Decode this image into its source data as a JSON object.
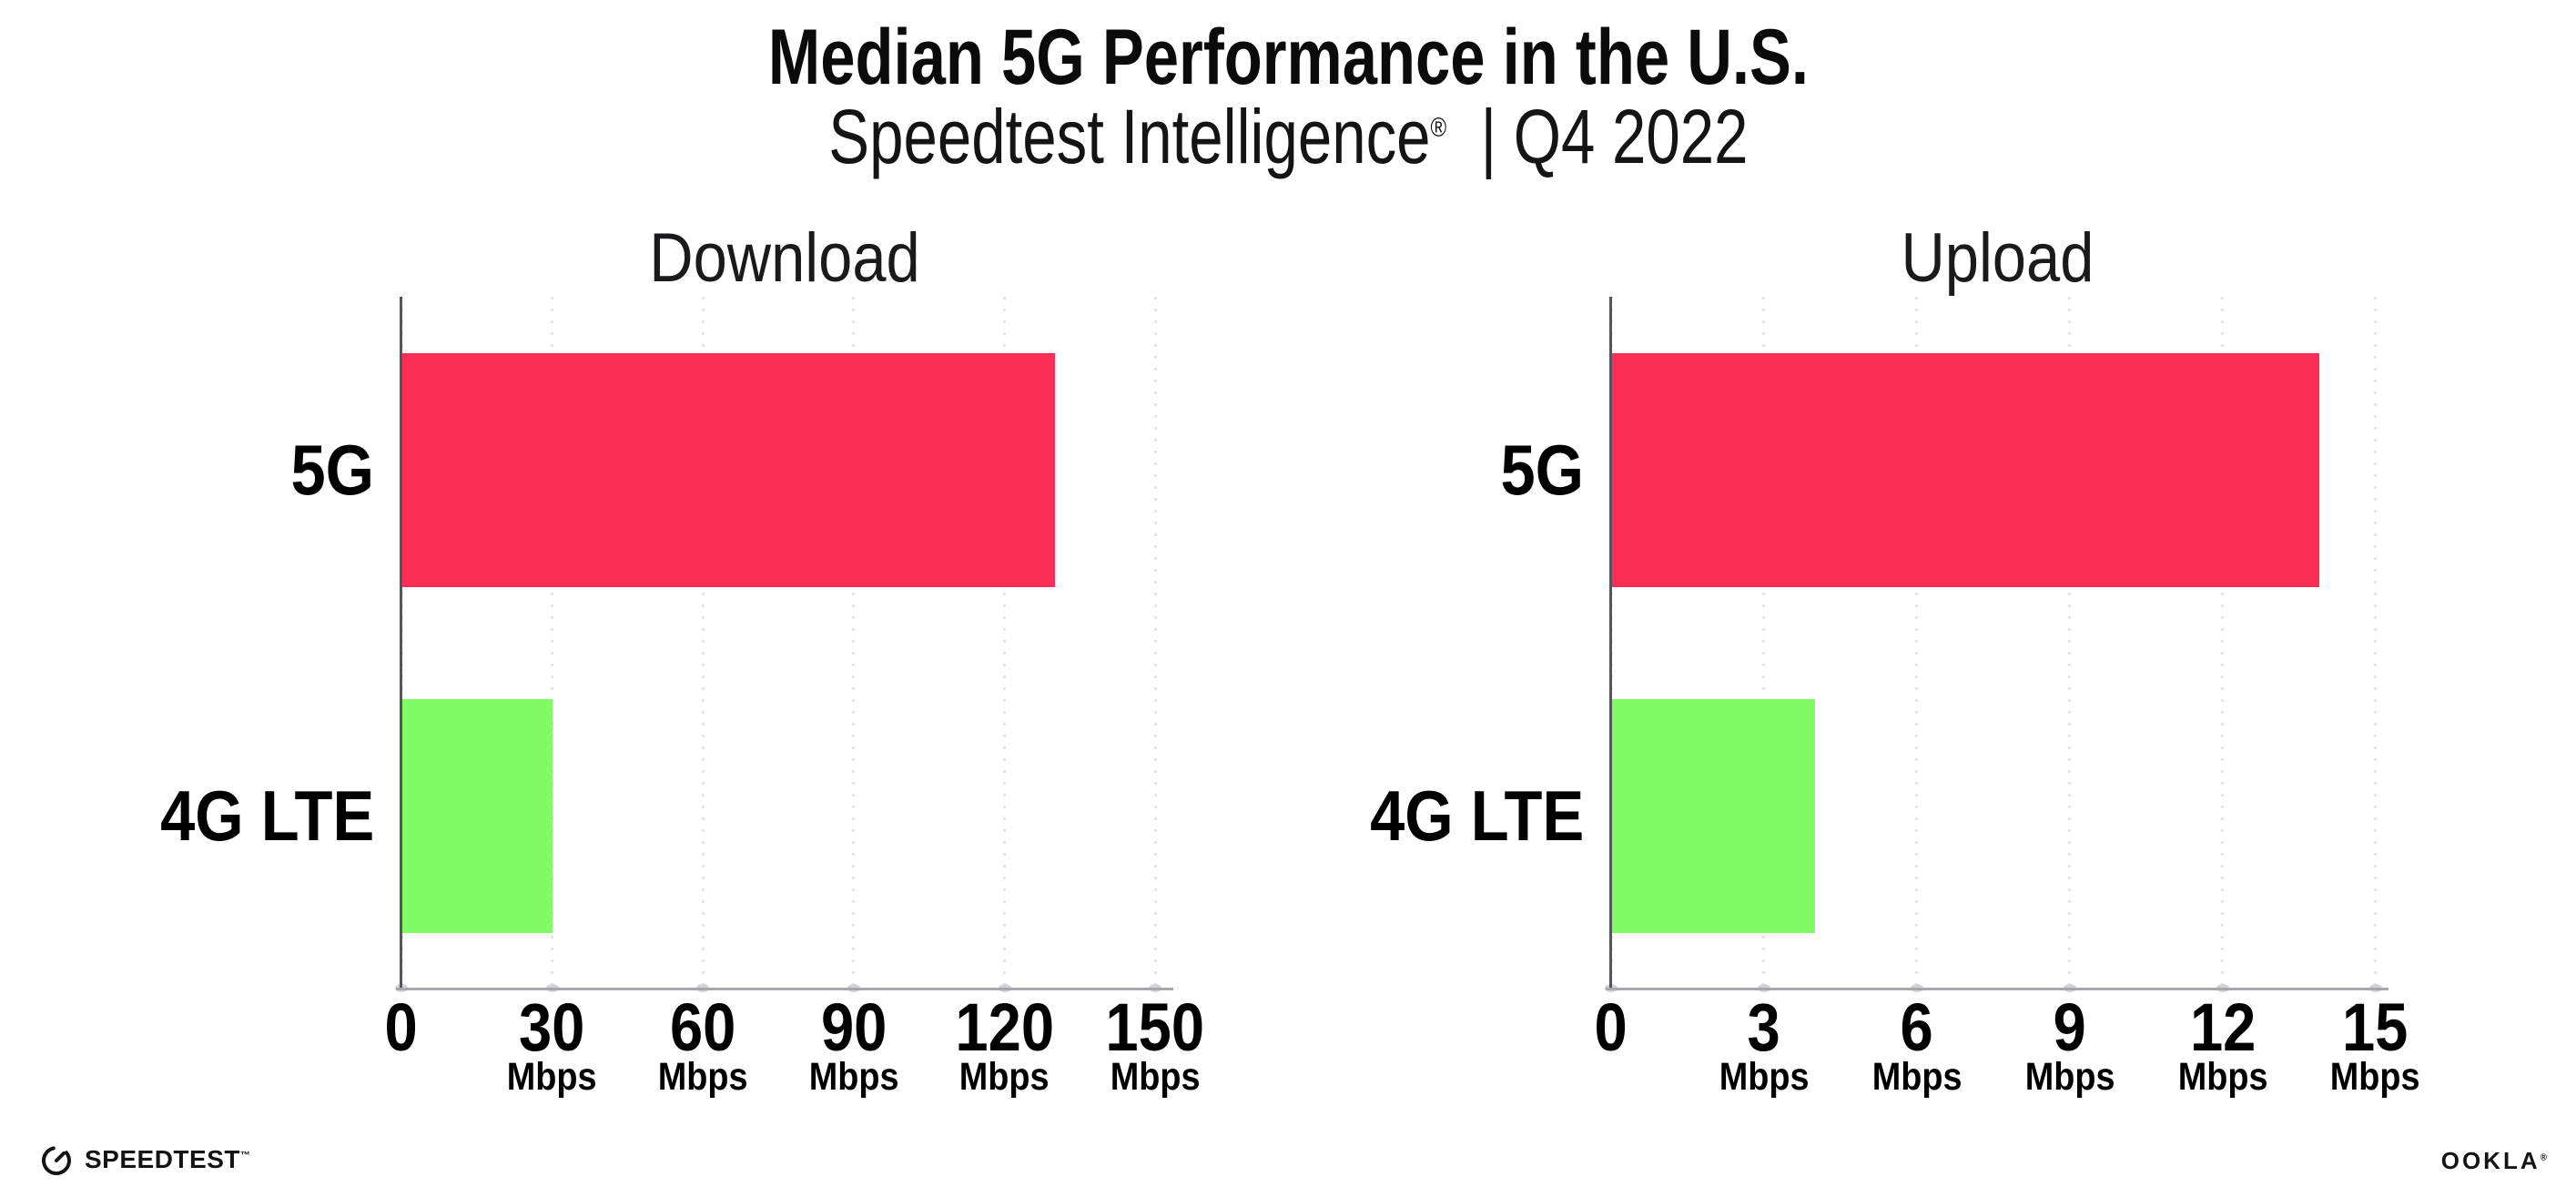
{
  "header": {
    "title": "Median 5G Performance in the U.S.",
    "subtitle_brand": "Speedtest Intelligence",
    "subtitle_registered": "®",
    "subtitle_divider": "|",
    "subtitle_period": "Q4 2022"
  },
  "chart_data": [
    {
      "type": "bar",
      "orientation": "horizontal",
      "title": "Download",
      "categories": [
        "5G",
        "4G LTE"
      ],
      "values": [
        130,
        30
      ],
      "unit": "Mbps",
      "xlim": [
        0,
        150
      ],
      "xticks": [
        0,
        30,
        60,
        90,
        120,
        150
      ],
      "grid": "dotted-vertical",
      "legend": "none",
      "bar_colors": [
        "#FE2D55",
        "#82FA64"
      ]
    },
    {
      "type": "bar",
      "orientation": "horizontal",
      "title": "Upload",
      "categories": [
        "5G",
        "4G LTE"
      ],
      "values": [
        13.9,
        4
      ],
      "unit": "Mbps",
      "xlim": [
        0,
        15
      ],
      "xticks": [
        0,
        3,
        6,
        9,
        12,
        15
      ],
      "grid": "dotted-vertical",
      "legend": "none",
      "bar_colors": [
        "#FE2D55",
        "#82FA64"
      ]
    }
  ],
  "footer": {
    "speedtest_label": "SPEEDTEST",
    "speedtest_mark": "™",
    "ookla_label": "OOKLA",
    "ookla_mark": "®"
  },
  "colors": {
    "bar_5g": "#FE2D55",
    "bar_4g_lte": "#82FA64",
    "gridline": "#E3E3EE",
    "x_axis": "#A7A7AD",
    "y_axis": "#55555C",
    "text": "#0B0B0B"
  }
}
